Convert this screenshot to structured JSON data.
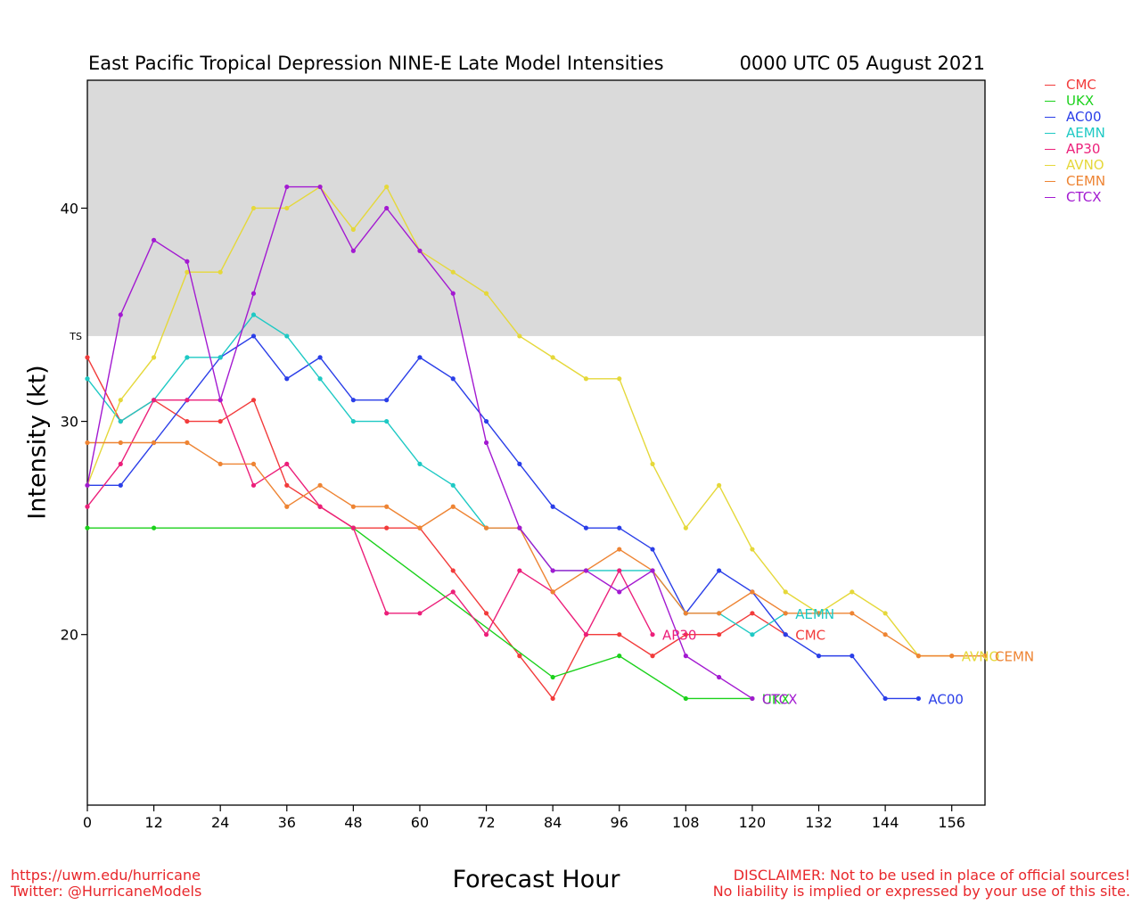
{
  "header": {
    "title": "East Pacific Tropical Depression NINE-E Late Model Intensities",
    "timestamp": "0000 UTC 05 August 2021"
  },
  "footer": {
    "url": "https://uwm.edu/hurricane",
    "twitter": "Twitter: @HurricaneModels",
    "disclaimer_1": "DISCLAIMER: Not to be used in place of official sources!",
    "disclaimer_2": "No liability is implied or expressed by your use of this site."
  },
  "chart_data": {
    "type": "line",
    "xlabel": "Forecast Hour",
    "ylabel": "Intensity (kt)",
    "xlim": [
      0,
      162
    ],
    "ylim": [
      12,
      46
    ],
    "x_ticks": [
      0,
      12,
      24,
      36,
      48,
      60,
      72,
      84,
      96,
      108,
      120,
      132,
      144,
      156
    ],
    "y_ticks": [
      20,
      30,
      40
    ],
    "threshold": {
      "label": "TS",
      "value": 34,
      "shade_above": true,
      "shade_color": "#dadada"
    },
    "legend_position": "top-right outside",
    "series": [
      {
        "name": "CMC",
        "color": "#f23b3b",
        "x": [
          0,
          6,
          12,
          18,
          24,
          30,
          36,
          42,
          48,
          54,
          60,
          66,
          72,
          78,
          84,
          90,
          96,
          102,
          108,
          114,
          120,
          126
        ],
        "y": [
          33,
          30,
          31,
          30,
          30,
          31,
          27,
          26,
          25,
          25,
          25,
          23,
          21,
          19,
          17,
          20,
          20,
          19,
          20,
          20,
          21,
          20
        ]
      },
      {
        "name": "UKX",
        "color": "#1bd11b",
        "x": [
          0,
          12,
          48,
          84,
          96,
          108,
          120
        ],
        "y": [
          25,
          25,
          25,
          18,
          19,
          17,
          17
        ]
      },
      {
        "name": "AC00",
        "color": "#2a3ee8",
        "x": [
          0,
          6,
          12,
          18,
          24,
          30,
          36,
          42,
          48,
          54,
          60,
          66,
          72,
          78,
          84,
          90,
          96,
          102,
          108,
          114,
          120,
          126,
          132,
          138,
          144,
          150
        ],
        "y": [
          27,
          27,
          29,
          31,
          33,
          34,
          32,
          33,
          31,
          31,
          33,
          32,
          30,
          28,
          26,
          25,
          25,
          24,
          21,
          23,
          22,
          20,
          19,
          19,
          17,
          17
        ]
      },
      {
        "name": "AEMN",
        "color": "#1ec9c4",
        "x": [
          0,
          6,
          12,
          18,
          24,
          30,
          36,
          42,
          48,
          54,
          60,
          66,
          72,
          78,
          84,
          90,
          96,
          102,
          108,
          114,
          120,
          126
        ],
        "y": [
          32,
          30,
          31,
          33,
          33,
          35,
          34,
          32,
          30,
          30,
          28,
          27,
          25,
          25,
          23,
          23,
          23,
          23,
          21,
          21,
          20,
          21
        ]
      },
      {
        "name": "AP30",
        "color": "#ec1f7a",
        "x": [
          0,
          6,
          12,
          18,
          24,
          30,
          36,
          42,
          48,
          54,
          60,
          66,
          72,
          78,
          84,
          90,
          96,
          102
        ],
        "y": [
          26,
          28,
          31,
          31,
          31,
          27,
          28,
          26,
          25,
          21,
          21,
          22,
          20,
          23,
          22,
          20,
          23,
          20
        ]
      },
      {
        "name": "AVNO",
        "color": "#e5d83a",
        "x": [
          0,
          6,
          12,
          18,
          24,
          30,
          36,
          42,
          48,
          54,
          60,
          66,
          72,
          78,
          84,
          90,
          96,
          102,
          108,
          114,
          120,
          126,
          132,
          138,
          144,
          150,
          156
        ],
        "y": [
          27,
          31,
          33,
          37,
          37,
          40,
          40,
          41,
          39,
          41,
          38,
          37,
          36,
          34,
          33,
          32,
          32,
          28,
          25,
          27,
          24,
          22,
          21,
          22,
          21,
          19,
          19
        ]
      },
      {
        "name": "CEMN",
        "color": "#ee8433",
        "x": [
          0,
          6,
          12,
          18,
          24,
          30,
          36,
          42,
          48,
          54,
          60,
          66,
          72,
          78,
          84,
          90,
          96,
          102,
          108,
          114,
          120,
          126,
          132,
          138,
          144,
          150,
          156,
          162
        ],
        "y": [
          29,
          29,
          29,
          29,
          28,
          28,
          26,
          27,
          26,
          26,
          25,
          26,
          25,
          25,
          22,
          23,
          24,
          23,
          21,
          21,
          22,
          21,
          21,
          21,
          20,
          19,
          19,
          19
        ]
      },
      {
        "name": "CTCX",
        "color": "#a31ad1",
        "x": [
          0,
          6,
          12,
          18,
          24,
          30,
          36,
          42,
          48,
          54,
          60,
          66,
          72,
          78,
          84,
          90,
          96,
          102,
          108,
          114,
          120
        ],
        "y": [
          27,
          35,
          38.5,
          37.5,
          31,
          36,
          41,
          41,
          38,
          40,
          38,
          36,
          29,
          25,
          23,
          23,
          22,
          23,
          19,
          18,
          17
        ]
      }
    ],
    "end_labels": [
      {
        "series": "AEMN",
        "x": 126,
        "y": 21,
        "text": "AEMN"
      },
      {
        "series": "CMC",
        "x": 126,
        "y": 20,
        "text": "CMC"
      },
      {
        "series": "AP30",
        "x": 102,
        "y": 20,
        "text": "AP30"
      },
      {
        "series": "AVNO",
        "x": 156,
        "y": 19,
        "text": "AVNO"
      },
      {
        "series": "CEMN",
        "x": 162,
        "y": 19,
        "text": "CEMN"
      },
      {
        "series": "AC00",
        "x": 150,
        "y": 17,
        "text": "AC00"
      },
      {
        "series": "UKX",
        "x": 120,
        "y": 17,
        "text": "UKX"
      },
      {
        "series": "CTCX",
        "x": 120,
        "y": 17,
        "text": "CTCX"
      }
    ]
  }
}
